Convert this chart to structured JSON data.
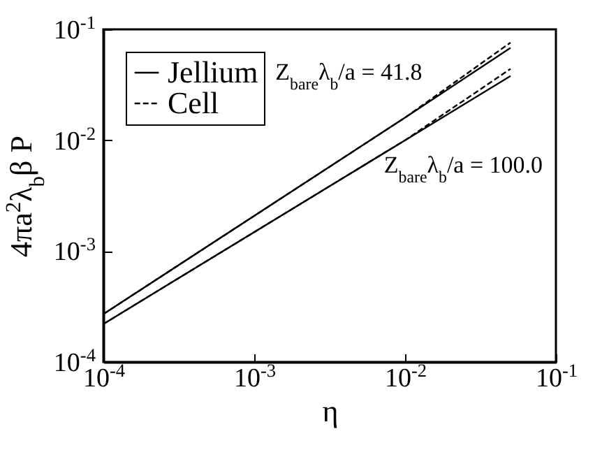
{
  "chart_data": {
    "type": "line",
    "xlabel": "η",
    "ylabel": "4πa$^{2}$λ$_{b}$β P",
    "x": [
      0.0001,
      0.01,
      0.05
    ],
    "series": [
      {
        "name": "Jellium",
        "color": "#000000",
        "line_style": "solid",
        "values": [
          0.00027,
          0.016,
          0.068
        ]
      },
      {
        "name": "Cell",
        "color": "#000000",
        "line_style": "dashed",
        "values": [
          0.00027,
          0.016,
          0.076
        ]
      },
      {
        "color": "#000000",
        "line_style": "solid",
        "values": [
          0.00022,
          0.01,
          0.038
        ]
      },
      {
        "color": "#000000",
        "line_style": "dashed",
        "values": [
          0.00022,
          0.01,
          0.044
        ]
      }
    ],
    "log": "xy",
    "xlim": [
      0.0001,
      0.1
    ],
    "ylim": [
      0.0001,
      0.1
    ],
    "xticks": [
      {
        "value": 0.0001,
        "label": "10$^{-4}$"
      },
      {
        "value": 0.001,
        "label": "10$^{-3}$"
      },
      {
        "value": 0.01,
        "label": "10$^{-2}$"
      },
      {
        "value": 0.1,
        "label": "10$^{-1}$"
      }
    ],
    "yticks": [
      {
        "value": 0.0001,
        "label": "10$^{-4}$"
      },
      {
        "value": 0.001,
        "label": "10$^{-3}$"
      },
      {
        "value": 0.01,
        "label": "10$^{-2}$"
      },
      {
        "value": 0.1,
        "label": "10$^{-1}$"
      }
    ],
    "legend": "top left",
    "marker": "none",
    "annotations": [
      "Z$_{bare}$λ$_{b}$/a = 41.8",
      "Z$_{bare}$λ$_{b}$/a = 100.0"
    ]
  }
}
